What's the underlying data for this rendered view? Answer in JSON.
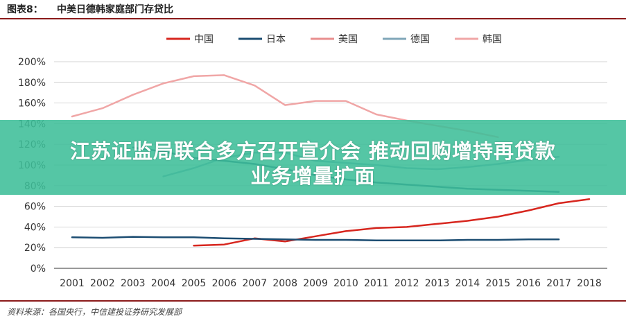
{
  "figure": {
    "number": "图表8：",
    "title": "中美日德韩家庭部门存贷比"
  },
  "overlay": {
    "line1": "江苏证监局联合多方召开宣介会 推动回购增持再贷款",
    "line2": "业务增量扩面"
  },
  "source": "资料来源：各国央行，中信建投证券研究发展部",
  "chart_data": {
    "type": "line",
    "title": "中美日德韩家庭部门存贷比",
    "x": [
      2001,
      2002,
      2003,
      2004,
      2005,
      2006,
      2007,
      2008,
      2009,
      2010,
      2011,
      2012,
      2013,
      2014,
      2015,
      2016,
      2017,
      2018
    ],
    "x_tick_labels": [
      "2001",
      "2002",
      "2003",
      "2004",
      "2005",
      "2006",
      "2007",
      "2008",
      "2009",
      "2010",
      "2011",
      "2012",
      "2013",
      "2014",
      "2015",
      "2016",
      "2017",
      "2018"
    ],
    "y_ticks": [
      0,
      20,
      40,
      60,
      80,
      100,
      120,
      140,
      160,
      180,
      200
    ],
    "y_tick_labels": [
      "0%",
      "20%",
      "40%",
      "60%",
      "80%",
      "100%",
      "120%",
      "140%",
      "160%",
      "180%",
      "200%"
    ],
    "ylim": [
      0,
      200
    ],
    "y_unit": "%",
    "legend_position": "top-center",
    "grid": "horizontal",
    "series": [
      {
        "name": "中国",
        "color": "#d7261e",
        "width": 2.5,
        "values": [
          null,
          null,
          null,
          null,
          22,
          23,
          29,
          26,
          31,
          36,
          39,
          40,
          43,
          46,
          50,
          56,
          63,
          67
        ]
      },
      {
        "name": "日本",
        "color": "#1b4c71",
        "width": 2.5,
        "values": [
          30,
          29.5,
          30.5,
          30,
          30,
          29,
          28.5,
          28,
          27.5,
          27.5,
          27,
          27,
          27,
          27.5,
          27.5,
          28,
          28,
          null
        ]
      },
      {
        "name": "美国",
        "color": "#e88e8e",
        "width": 2.5,
        "values": [
          null,
          null,
          null,
          null,
          null,
          null,
          null,
          null,
          null,
          null,
          null,
          null,
          null,
          null,
          null,
          null,
          null,
          null
        ]
      },
      {
        "name": "德国",
        "color": "#7fa6b8",
        "width": 2.5,
        "values": [
          null,
          null,
          null,
          89,
          97,
          107,
          112,
          112,
          104,
          102,
          100,
          97,
          96,
          98,
          101,
          105,
          108,
          null
        ]
      },
      {
        "name": "韩国",
        "color": "#f0a6a6",
        "width": 2.5,
        "values": [
          147,
          155,
          168,
          179,
          186,
          187,
          177,
          158,
          162,
          162,
          149,
          143,
          138,
          133,
          127,
          null,
          null,
          null
        ]
      },
      {
        "name": "日本",
        "color": "#1b4c71",
        "width": 2.5,
        "hidden_in_legend": true,
        "values": [
          null,
          null,
          117,
          113,
          107,
          104,
          101,
          96,
          90,
          86,
          83,
          81,
          79,
          77,
          76,
          75,
          74,
          null
        ]
      }
    ]
  }
}
